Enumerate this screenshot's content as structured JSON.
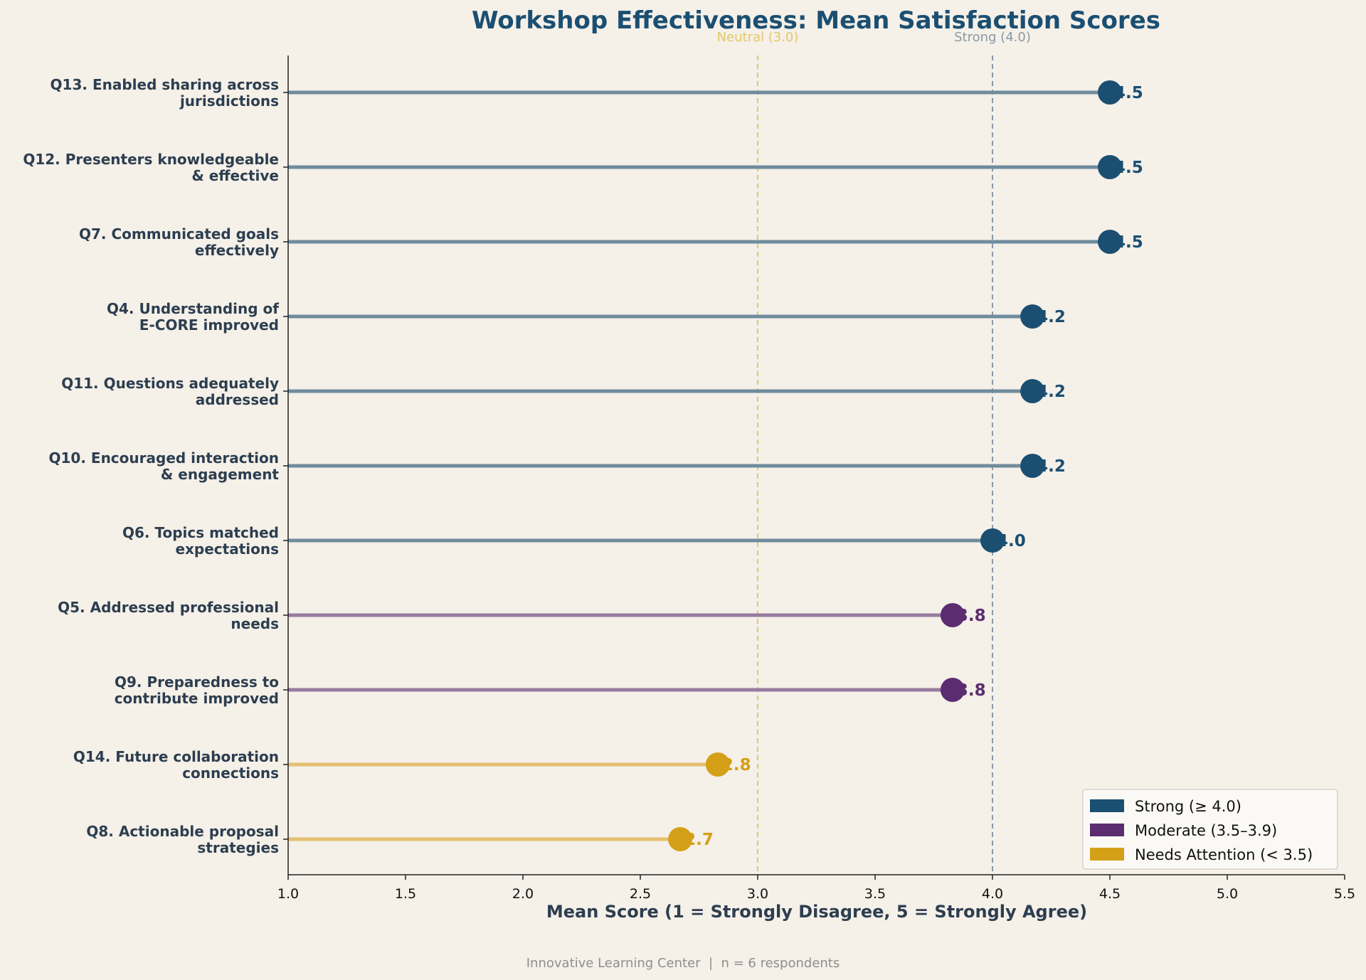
{
  "chart_data": {
    "type": "lollipop",
    "title": "Workshop Effectiveness: Mean Satisfaction Scores",
    "xlabel": "Mean Score (1 = Strongly Disagree, 5 = Strongly Agree)",
    "xlim": [
      1.0,
      5.5
    ],
    "xticks": [
      "1.0",
      "1.5",
      "2.0",
      "2.5",
      "3.0",
      "3.5",
      "4.0",
      "4.5",
      "5.0",
      "5.5"
    ],
    "grid": false,
    "legend_position": "bottom-right",
    "items": [
      {
        "label_lines": [
          "Q13. Enabled sharing across",
          "jurisdictions"
        ],
        "value": 4.5,
        "value_label": "4.5",
        "group": "strong"
      },
      {
        "label_lines": [
          "Q12. Presenters knowledgeable",
          "& effective"
        ],
        "value": 4.5,
        "value_label": "4.5",
        "group": "strong"
      },
      {
        "label_lines": [
          "Q7. Communicated goals",
          "effectively"
        ],
        "value": 4.5,
        "value_label": "4.5",
        "group": "strong"
      },
      {
        "label_lines": [
          "Q4. Understanding of",
          "E-CORE improved"
        ],
        "value": 4.17,
        "value_label": "4.2",
        "group": "strong"
      },
      {
        "label_lines": [
          "Q11. Questions adequately",
          "addressed"
        ],
        "value": 4.17,
        "value_label": "4.2",
        "group": "strong"
      },
      {
        "label_lines": [
          "Q10. Encouraged interaction",
          "& engagement"
        ],
        "value": 4.17,
        "value_label": "4.2",
        "group": "strong"
      },
      {
        "label_lines": [
          "Q6. Topics matched",
          "expectations"
        ],
        "value": 4.0,
        "value_label": "4.0",
        "group": "strong"
      },
      {
        "label_lines": [
          "Q5. Addressed professional",
          "needs"
        ],
        "value": 3.83,
        "value_label": "3.8",
        "group": "moderate"
      },
      {
        "label_lines": [
          "Q9. Preparedness to",
          "contribute improved"
        ],
        "value": 3.83,
        "value_label": "3.8",
        "group": "moderate"
      },
      {
        "label_lines": [
          "Q14. Future collaboration",
          "connections"
        ],
        "value": 2.83,
        "value_label": "2.8",
        "group": "attention"
      },
      {
        "label_lines": [
          "Q8. Actionable proposal",
          "strategies"
        ],
        "value": 2.67,
        "value_label": "2.7",
        "group": "attention"
      }
    ],
    "reference_lines": [
      {
        "value": 3.0,
        "label": "Neutral (3.0)",
        "color": "#E3C76A"
      },
      {
        "value": 4.0,
        "label": "Strong (4.0)",
        "color": "#8A9AA6"
      }
    ],
    "legend": [
      {
        "group": "strong",
        "label": "Strong (≥ 4.0)"
      },
      {
        "group": "moderate",
        "label": "Moderate (3.5–3.9)"
      },
      {
        "group": "attention",
        "label": "Needs Attention (< 3.5)"
      }
    ],
    "colors": {
      "strong": "#1B4F72",
      "strong_stem": "#6F8C9E",
      "moderate": "#5B2C6F",
      "moderate_stem": "#977BA0",
      "attention": "#D4A017",
      "attention_stem": "#E3C070",
      "title": "#1B4F72",
      "label": "#2C3E50",
      "background": "#F5F0E8"
    }
  },
  "footer": "Innovative Learning Center  |  n = 6 respondents"
}
